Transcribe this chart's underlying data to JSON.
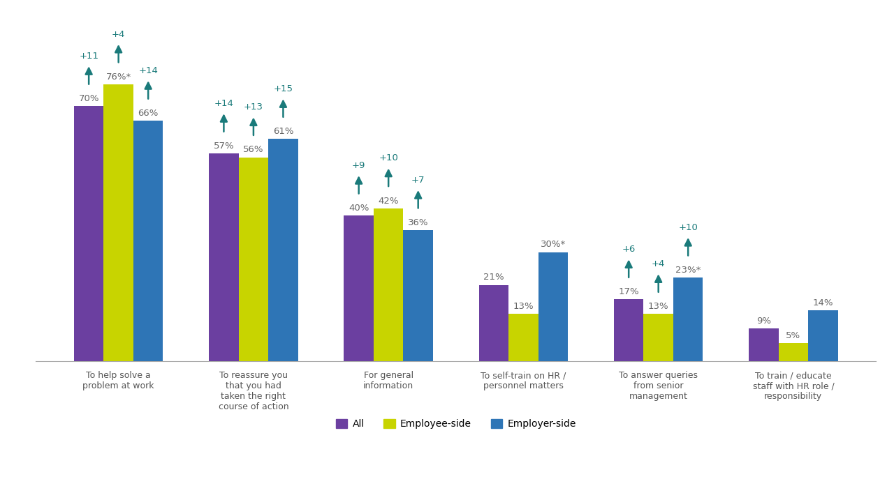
{
  "categories": [
    "To help solve a\nproblem at work",
    "To reassure you\nthat you had\ntaken the right\ncourse of action",
    "For general\ninformation",
    "To self-train on HR /\npersonnel matters",
    "To answer queries\nfrom senior\nmanagement",
    "To train / educate\nstaff with HR role /\nresponsibility"
  ],
  "series": {
    "All": [
      70,
      57,
      40,
      21,
      17,
      9
    ],
    "Employee-side": [
      76,
      56,
      42,
      13,
      13,
      5
    ],
    "Employer-side": [
      66,
      61,
      36,
      30,
      23,
      14
    ]
  },
  "bar_colors": {
    "All": "#6b3fa0",
    "Employee-side": "#c8d400",
    "Employer-side": "#2e75b6"
  },
  "arrow_color": "#1a7a7a",
  "annotation_data": [
    [
      0,
      0,
      70,
      "70%",
      "+11",
      true
    ],
    [
      0,
      1,
      76,
      "76%*",
      "+4",
      true
    ],
    [
      0,
      2,
      66,
      "66%",
      "+14",
      true
    ],
    [
      1,
      0,
      57,
      "57%",
      "+14",
      true
    ],
    [
      1,
      1,
      56,
      "56%",
      "+13",
      true
    ],
    [
      1,
      2,
      61,
      "61%",
      "+15",
      true
    ],
    [
      2,
      0,
      40,
      "40%",
      "+9",
      true
    ],
    [
      2,
      1,
      42,
      "42%",
      "+10",
      true
    ],
    [
      2,
      2,
      36,
      "36%",
      "+7",
      true
    ],
    [
      3,
      0,
      21,
      "21%",
      null,
      false
    ],
    [
      3,
      1,
      13,
      "13%",
      null,
      false
    ],
    [
      3,
      2,
      30,
      "30%*",
      null,
      false
    ],
    [
      4,
      0,
      17,
      "17%",
      "+6",
      true
    ],
    [
      4,
      1,
      13,
      "13%",
      "+4",
      true
    ],
    [
      4,
      2,
      23,
      "23%*",
      "+10",
      true
    ],
    [
      5,
      0,
      9,
      "9%",
      null,
      false
    ],
    [
      5,
      1,
      5,
      "5%",
      null,
      false
    ],
    [
      5,
      2,
      14,
      "14%",
      null,
      false
    ]
  ],
  "legend_labels": [
    "All",
    "Employee-side",
    "Employer-side"
  ],
  "background_color": "#ffffff",
  "ylim": [
    0,
    95
  ],
  "bar_width": 0.22,
  "text_color": "#666666",
  "label_fontsize": 9.5,
  "delta_fontsize": 9.5
}
